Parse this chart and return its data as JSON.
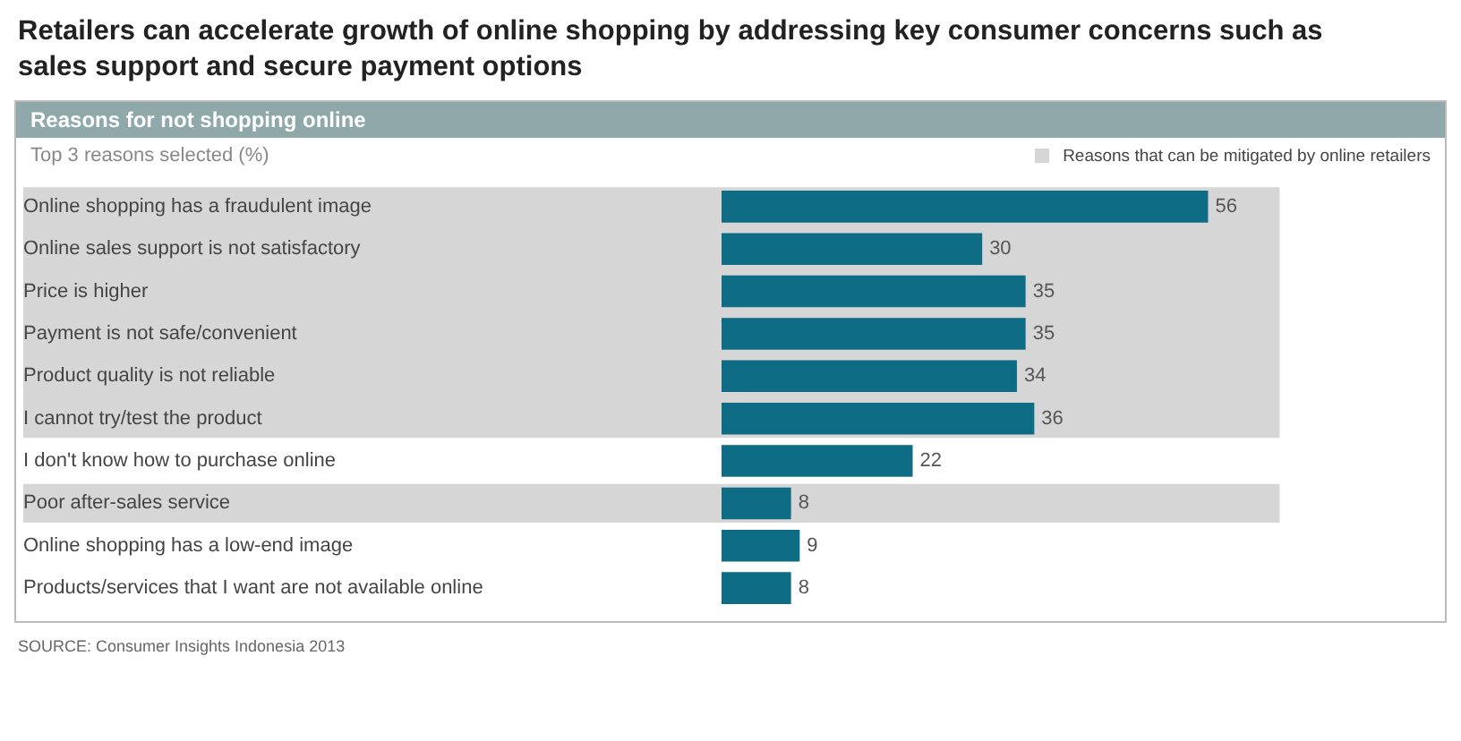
{
  "chart_data": {
    "type": "bar",
    "orientation": "horizontal",
    "title": "Retailers can accelerate growth of online shopping by addressing key  consumer concerns such as sales support and secure payment options",
    "subtitle": "Reasons for not shopping online",
    "xlabel": "Top 3 reasons selected (%)",
    "categories": [
      "Online shopping has a fraudulent image",
      "Online sales support is not satisfactory",
      "Price is higher",
      "Payment is not safe/convenient",
      "Product quality is not reliable",
      "I cannot try/test the product",
      "I don't know how to purchase online",
      "Poor after-sales service",
      "Online shopping has a low-end image",
      "Products/services that I want are not available online"
    ],
    "values": [
      56,
      30,
      35,
      35,
      34,
      36,
      22,
      8,
      9,
      8
    ],
    "color": "#0e6c84",
    "data_labels": true,
    "tick_labels": "y",
    "grid": false,
    "legend": "top right",
    "bands": [
      {
        "axis": "y",
        "from": "Online shopping has a fraudulent image",
        "to": "I cannot try/test the product",
        "label": "Reasons that can be mitigated by online retailers",
        "color": "#d6d6d6"
      },
      {
        "axis": "y",
        "from": "Poor after-sales service",
        "to": "Poor after-sales service",
        "label": null,
        "color": "#d6d6d6"
      }
    ],
    "annotations": [
      "SOURCE: Consumer Insights Indonesia 2013"
    ]
  }
}
